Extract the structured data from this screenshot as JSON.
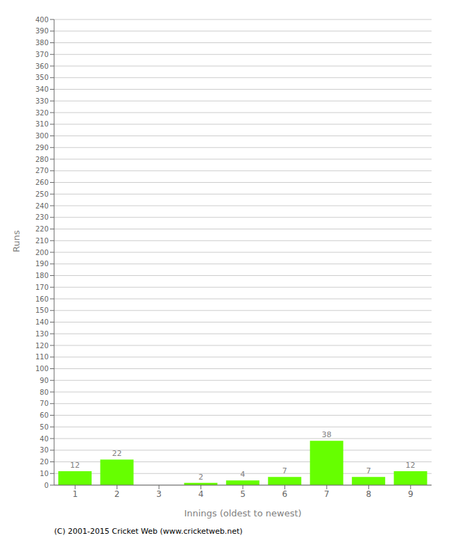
{
  "chart_data": {
    "type": "bar",
    "xlabel": "Innings (oldest to newest)",
    "ylabel": "Runs",
    "categories": [
      "1",
      "2",
      "3",
      "4",
      "5",
      "6",
      "7",
      "8",
      "9"
    ],
    "values": [
      12,
      22,
      0,
      2,
      4,
      7,
      38,
      7,
      12
    ],
    "color": "#66ff00",
    "ylim": [
      0,
      400
    ],
    "yticks": [
      0,
      10,
      20,
      30,
      40,
      50,
      60,
      70,
      80,
      90,
      100,
      110,
      120,
      130,
      140,
      150,
      160,
      170,
      180,
      190,
      200,
      210,
      220,
      230,
      240,
      250,
      260,
      270,
      280,
      290,
      300,
      310,
      320,
      330,
      340,
      350,
      360,
      370,
      380,
      390,
      400
    ],
    "grid": true,
    "data_labels": true,
    "annotations": [
      "(C) 2001-2015 Cricket Web (www.cricketweb.net)"
    ]
  }
}
